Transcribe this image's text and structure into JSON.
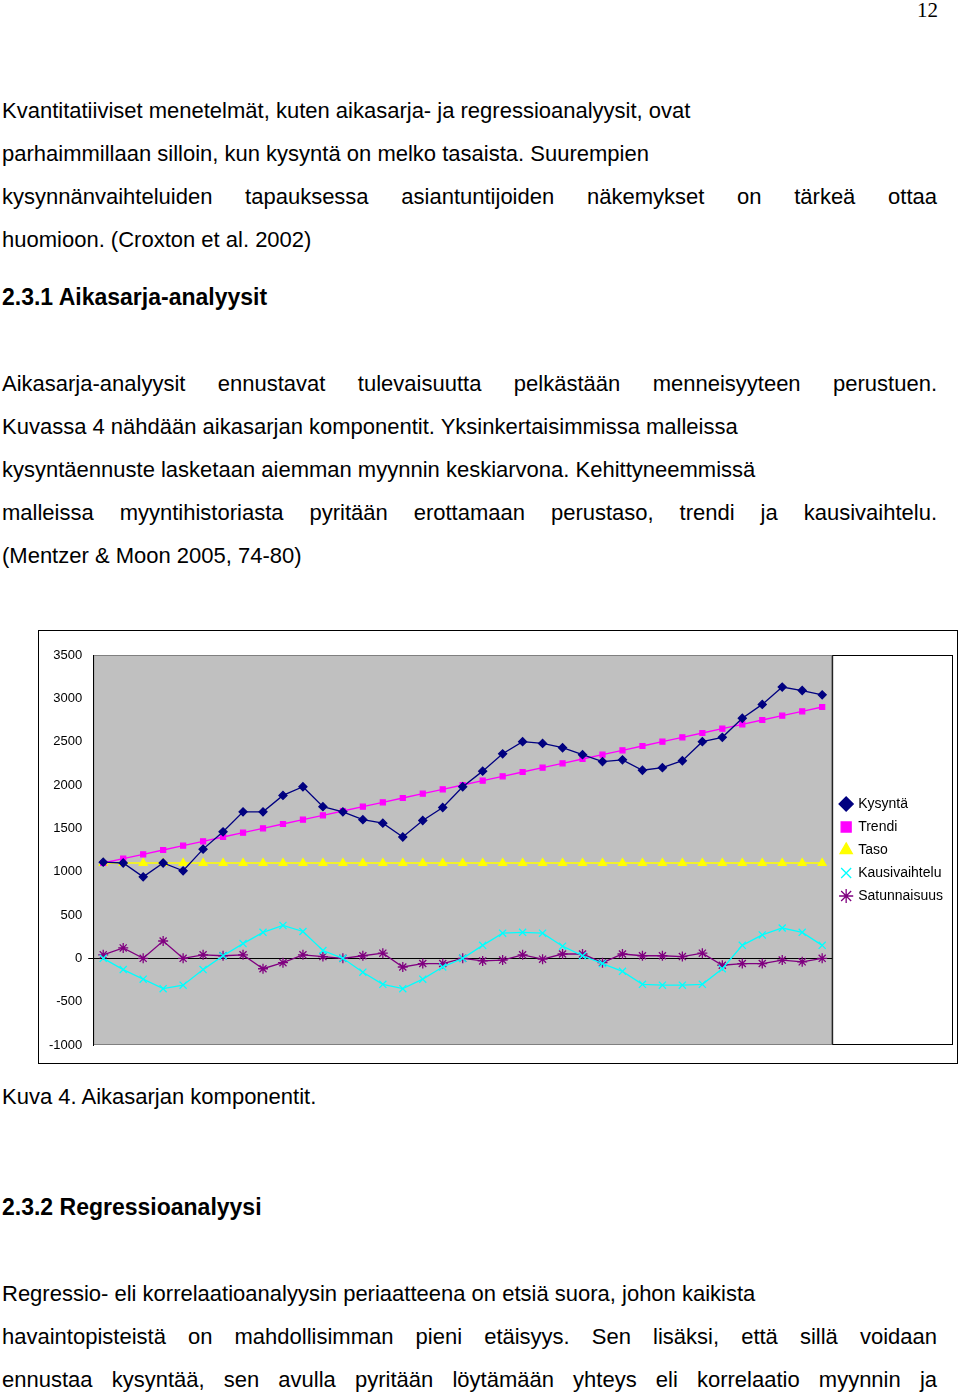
{
  "document": {
    "page_number": "12",
    "paragraph_1": [
      "Kvantitatiiviset menetelmät, kuten aikasarja- ja regressioanalyysit, ovat",
      "parhaimmillaan silloin, kun kysyntä on melko tasaista. Suurempien",
      "kysynnänvaihteluiden tapauksessa asiantuntijoiden näkemykset on tärkeä ottaa",
      "huomioon. (Croxton et al. 2002)"
    ],
    "heading_1": "2.3.1 Aikasarja-analyysit",
    "paragraph_2": [
      "Aikasarja-analyysit ennustavat tulevaisuutta pelkästään menneisyyteen perustuen.",
      "Kuvassa 4 nähdään aikasarjan komponentit. Yksinkertaisimmissa malleissa",
      "kysyntäennuste lasketaan aiemman myynnin keskiarvona. Kehittyneemmissä",
      "malleissa myyntihistoriasta pyritään erottamaan perustaso, trendi ja kausivaihtelu.",
      "(Mentzer & Moon 2005, 74-80)"
    ],
    "caption": "Kuva 4. Aikasarjan komponentit.",
    "heading_2": "2.3.2 Regressioanalyysi",
    "paragraph_3": [
      "Regressio- eli korrelaatioanalyysin periaatteena on etsiä suora, johon kaikista",
      "havaintopisteistä on mahdollisimman pieni etäisyys. Sen lisäksi, että sillä voidaan",
      "ennustaa kysyntää, sen avulla pyritään löytämään yhteys eli korrelaatio myynnin ja"
    ]
  },
  "chart_data": {
    "type": "line",
    "categories": [
      null,
      null,
      null,
      null,
      null,
      null,
      null,
      null,
      null,
      null,
      null,
      null,
      null,
      null,
      null,
      null,
      null,
      null,
      null,
      null,
      null,
      null,
      null,
      null,
      null,
      null,
      null,
      null,
      null,
      null,
      null,
      null,
      null,
      null,
      null,
      null,
      null
    ],
    "ylim": [
      -1000,
      3500
    ],
    "yticks": [
      -1000,
      -500,
      0,
      500,
      1000,
      1500,
      2000,
      2500,
      3000,
      3500
    ],
    "grid": false,
    "legend": "right",
    "tick_labels": "y",
    "series": [
      {
        "name": "Kysyntä",
        "color": "#000080",
        "marker": "diamond",
        "values": [
          1110,
          1100,
          940,
          1100,
          1010,
          1260,
          1460,
          1690,
          1690,
          1880,
          1980,
          1750,
          1690,
          1600,
          1560,
          1400,
          1590,
          1740,
          1980,
          2160,
          2360,
          2500,
          2480,
          2430,
          2350,
          2270,
          2290,
          2170,
          2200,
          2280,
          2500,
          2550,
          2770,
          2930,
          3130,
          3090,
          3040
        ]
      },
      {
        "name": "Trendi",
        "color": "#ff00ff",
        "marker": "square",
        "values": [
          1100,
          1150,
          1200,
          1250,
          1300,
          1350,
          1400,
          1450,
          1500,
          1550,
          1600,
          1650,
          1700,
          1750,
          1800,
          1850,
          1900,
          1950,
          2000,
          2050,
          2100,
          2150,
          2200,
          2250,
          2300,
          2350,
          2400,
          2450,
          2500,
          2550,
          2600,
          2650,
          2700,
          2750,
          2800,
          2850,
          2900
        ]
      },
      {
        "name": "Taso",
        "color": "#ffff00",
        "marker": "triangle",
        "values": [
          1100,
          1100,
          1100,
          1100,
          1100,
          1100,
          1100,
          1100,
          1100,
          1100,
          1100,
          1100,
          1100,
          1100,
          1100,
          1100,
          1100,
          1100,
          1100,
          1100,
          1100,
          1100,
          1100,
          1100,
          1100,
          1100,
          1100,
          1100,
          1100,
          1100,
          1100,
          1100,
          1100,
          1100,
          1100,
          1100,
          1100
        ]
      },
      {
        "name": "Kausivaihtelu",
        "color": "#00ffff",
        "marker": "x",
        "values": [
          0,
          -130,
          -240,
          -350,
          -310,
          -130,
          30,
          170,
          300,
          380,
          310,
          90,
          0,
          -160,
          -300,
          -350,
          -240,
          -100,
          0,
          150,
          290,
          300,
          290,
          140,
          30,
          -60,
          -150,
          -300,
          -310,
          -310,
          -300,
          -120,
          150,
          270,
          350,
          300,
          150
        ]
      },
      {
        "name": "Satunnaisuus",
        "color": "#800080",
        "marker": "star",
        "values": [
          40,
          120,
          0,
          200,
          0,
          40,
          30,
          40,
          -120,
          -50,
          40,
          20,
          0,
          30,
          60,
          -100,
          -60,
          -60,
          0,
          -30,
          -20,
          40,
          -10,
          50,
          50,
          -50,
          50,
          30,
          30,
          20,
          60,
          -80,
          -60,
          -60,
          -20,
          -40,
          0
        ]
      }
    ]
  }
}
